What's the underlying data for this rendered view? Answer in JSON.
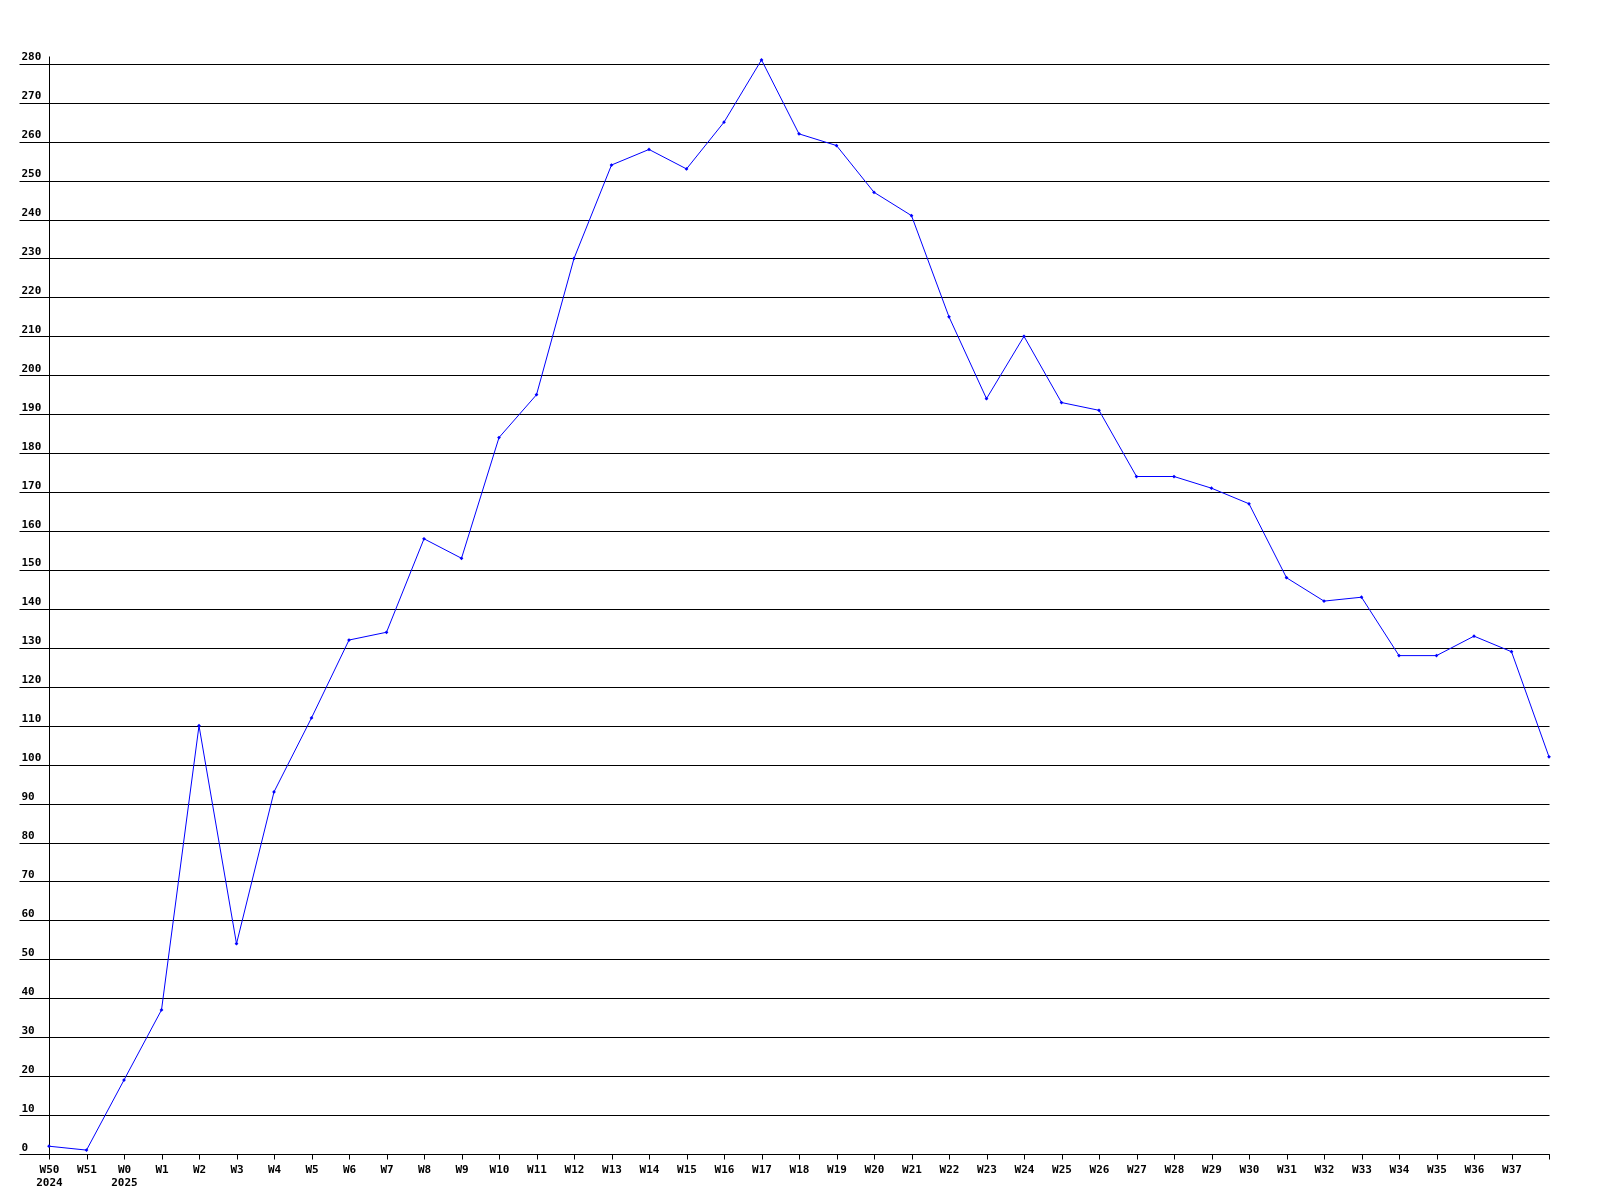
{
  "chart_data": {
    "type": "line",
    "categories": [
      "W50\n2024",
      "W51",
      "W0\n2025",
      "W1",
      "W2",
      "W3",
      "W4",
      "W5",
      "W6",
      "W7",
      "W8",
      "W9",
      "W10",
      "W11",
      "W12",
      "W13",
      "W14",
      "W15",
      "W16",
      "W17",
      "W18",
      "W19",
      "W20",
      "W21",
      "W22",
      "W23",
      "W24",
      "W25",
      "W26",
      "W27",
      "W28",
      "W29",
      "W30",
      "W31",
      "W32",
      "W33",
      "W34",
      "W35",
      "W36",
      "W37",
      null
    ],
    "series": [
      {
        "color": "#0000ff",
        "values": [
          2,
          1,
          19,
          37,
          110,
          54,
          93,
          112,
          132,
          134,
          158,
          153,
          184,
          195,
          230,
          254,
          258,
          253,
          265,
          281,
          262,
          259,
          247,
          241,
          215,
          194,
          210,
          193,
          191,
          174,
          174,
          171,
          167,
          148,
          142,
          143,
          128,
          128,
          133,
          129,
          102
        ]
      }
    ],
    "ylim": [
      0,
      282
    ],
    "yticks": [
      0,
      10,
      20,
      30,
      40,
      50,
      60,
      70,
      80,
      90,
      100,
      110,
      120,
      130,
      140,
      150,
      160,
      170,
      180,
      190,
      200,
      210,
      220,
      230,
      240,
      250,
      260,
      270,
      280
    ],
    "grid": "y",
    "marker": "diamond",
    "line_style": "solid"
  }
}
